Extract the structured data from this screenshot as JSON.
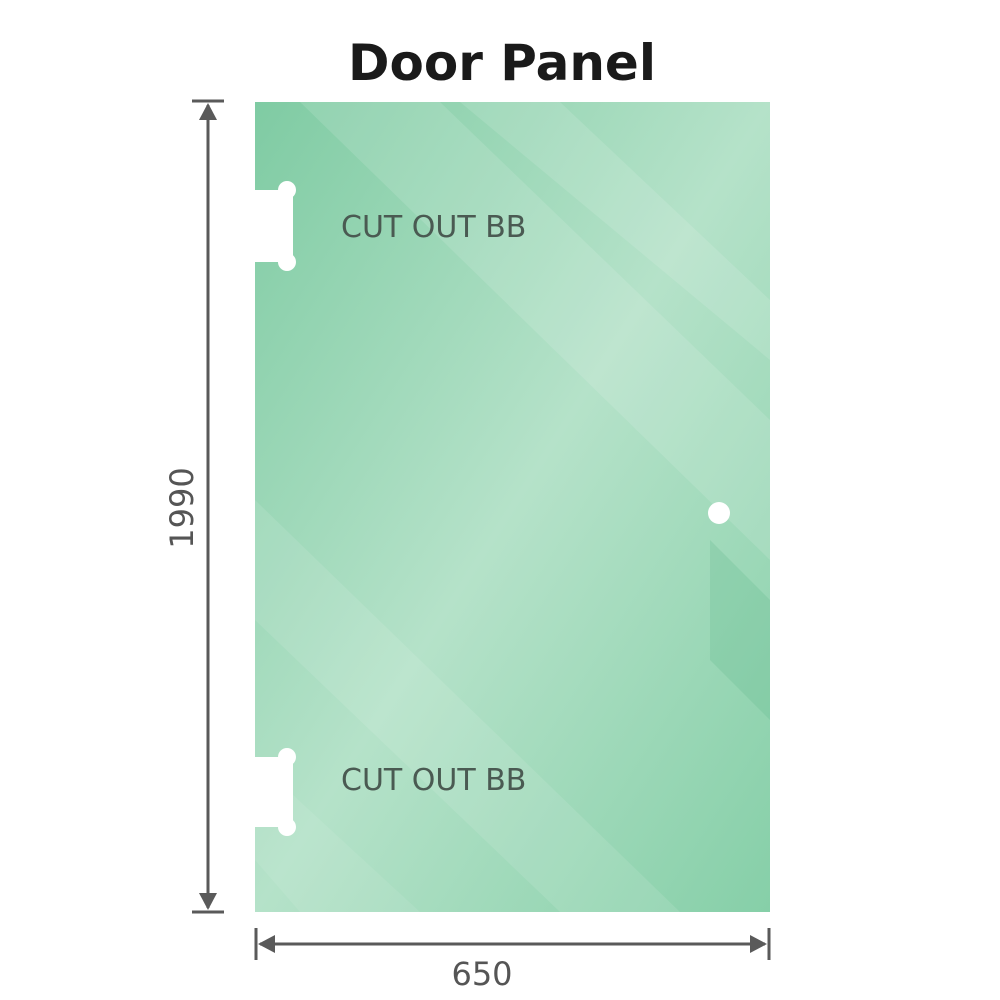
{
  "title": "Door Panel",
  "cutouts": [
    {
      "label": "CUT OUT BB"
    },
    {
      "label": "CUT OUT BB"
    }
  ],
  "dimensions": {
    "height": "1990",
    "width": "650"
  },
  "colors": {
    "glass": "#7fcba3",
    "glass_light": "#b9e4cc",
    "dimension_line": "#5a5a5a"
  }
}
